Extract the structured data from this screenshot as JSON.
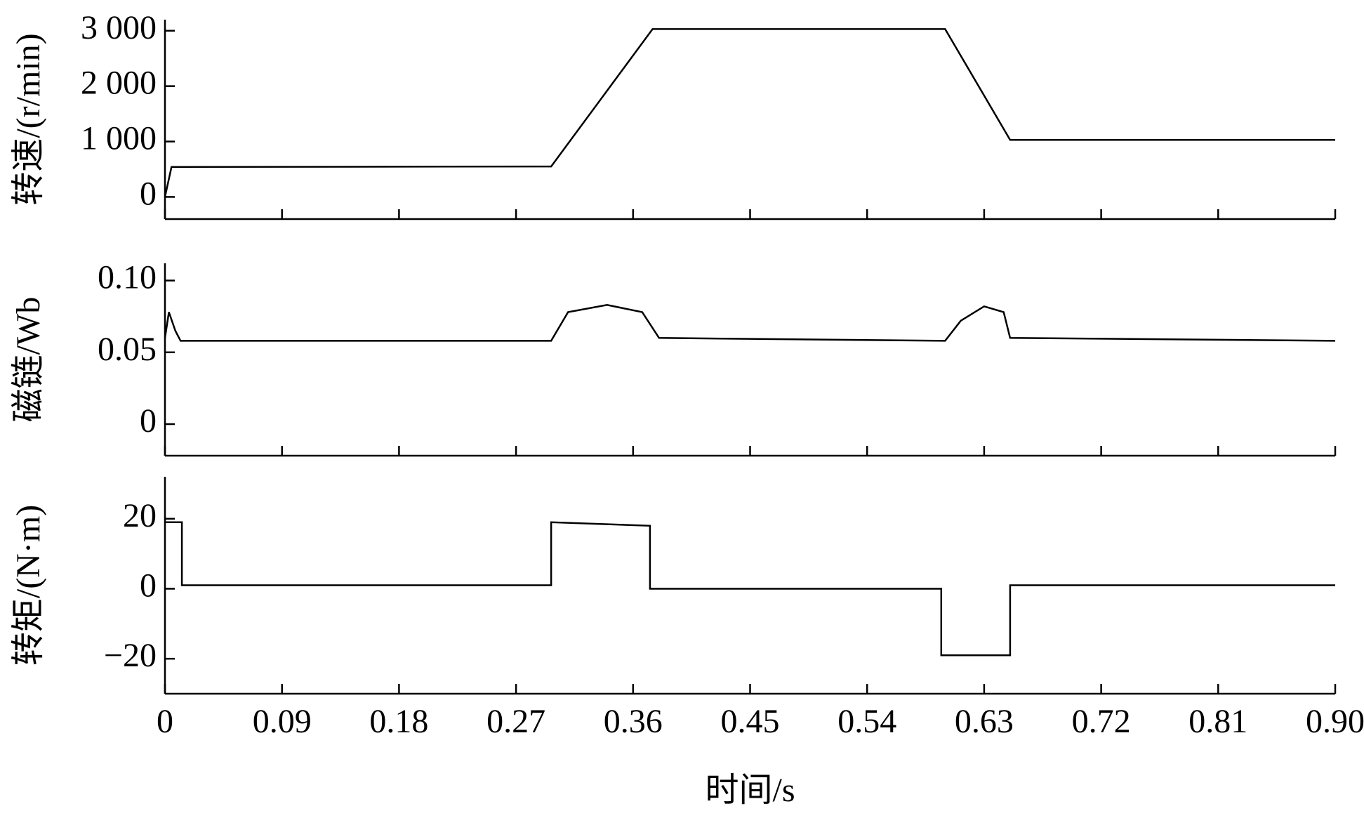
{
  "chart_data": [
    {
      "type": "line",
      "ylabel": "转速/(r/min)",
      "x": [
        0,
        0.005,
        0.297,
        0.375,
        0.6,
        0.65,
        0.9
      ],
      "series": [
        {
          "color": "#000000",
          "values": [
            0,
            540,
            550,
            3030,
            3030,
            1030,
            1030
          ]
        }
      ],
      "xlim": [
        0,
        0.9
      ],
      "ylim": [
        -400,
        3200
      ],
      "yticks": [
        0,
        {
          "value": 1000,
          "label": "1 000"
        },
        {
          "value": 2000,
          "label": "2 000"
        },
        {
          "value": 3000,
          "label": "3 000"
        }
      ]
    },
    {
      "type": "line",
      "ylabel": "磁链/Wb",
      "x": [
        0,
        0.003,
        0.008,
        0.012,
        0.297,
        0.31,
        0.34,
        0.367,
        0.38,
        0.6,
        0.612,
        0.63,
        0.645,
        0.65,
        0.9
      ],
      "series": [
        {
          "color": "#000000",
          "values": [
            0.06,
            0.078,
            0.065,
            0.058,
            0.058,
            0.078,
            0.083,
            0.078,
            0.06,
            0.058,
            0.072,
            0.082,
            0.078,
            0.06,
            0.058
          ]
        }
      ],
      "xlim": [
        0,
        0.9
      ],
      "ylim": [
        -0.022,
        0.112
      ],
      "yticks": [
        0,
        0.05,
        {
          "value": 0.1,
          "label": "0.10"
        }
      ]
    },
    {
      "type": "line",
      "ylabel": "转矩/(N·m)",
      "xlabel": "时间/s",
      "x": [
        0,
        0.013,
        0.013,
        0.297,
        0.297,
        0.373,
        0.373,
        0.597,
        0.597,
        0.65,
        0.65,
        0.9
      ],
      "series": [
        {
          "color": "#000000",
          "values": [
            19,
            19,
            1,
            1,
            19,
            18,
            0,
            0,
            -19,
            -19,
            1,
            1
          ]
        }
      ],
      "xlim": [
        0,
        0.9
      ],
      "ylim": [
        -30,
        32
      ],
      "yticks": [
        {
          "value": -20,
          "label": "−20"
        },
        0,
        20
      ],
      "xticks": [
        0,
        0.09,
        0.18,
        0.27,
        0.36,
        0.45,
        0.54,
        0.63,
        0.72,
        0.81,
        {
          "value": 0.9,
          "label": "0.90"
        }
      ]
    }
  ]
}
